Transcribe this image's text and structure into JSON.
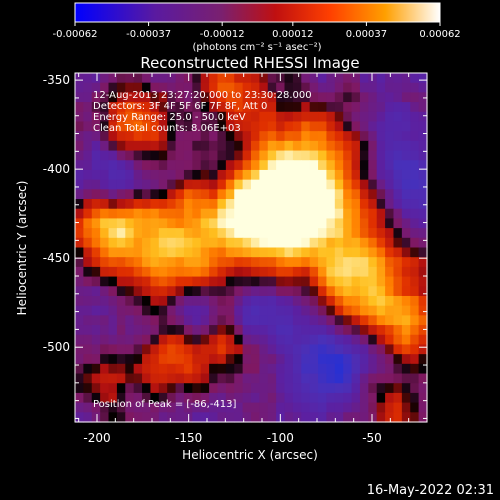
{
  "chart_data": {
    "type": "heatmap",
    "title": "Reconstructed RHESSI Image",
    "xlabel": "Heliocentric X (arcsec)",
    "ylabel": "Heliocentric Y (arcsec)",
    "xlim": [
      -212,
      -20
    ],
    "ylim": [
      -542,
      -346
    ],
    "x_ticks": [
      -200,
      -150,
      -100,
      -50
    ],
    "y_ticks": [
      -350,
      -400,
      -450,
      -500
    ],
    "x_tick_labels": [
      "-200",
      "-150",
      "-100",
      "-50"
    ],
    "y_tick_labels": [
      "-350",
      "-400",
      "-450",
      "-500"
    ],
    "colorbar": {
      "min": -0.00062,
      "max": 0.00062,
      "ticks": [
        -0.00062,
        -0.00037,
        -0.00012,
        0.00012,
        0.00037,
        0.00062
      ],
      "tick_labels": [
        "-0.00062",
        "-0.00037",
        "-0.00012",
        "0.00012",
        "0.00037",
        "0.00062"
      ],
      "unit_label": "(photons cm⁻² s⁻¹ asec⁻²)",
      "colors": [
        "#0000ff",
        "#5a1aa0",
        "#7a2070",
        "#c01010",
        "#ff4000",
        "#ff9f00",
        "#ffffff"
      ]
    },
    "annotations": {
      "time_range": "12-Aug-2013 23:27:20.000 to 23:30:28.000",
      "detectors": "Detectors: 3F 4F 5F 6F 7F 8F, Att 0",
      "energy": "Energy Range: 25.0 - 50.0 keV",
      "clean": "Clean    Total counts: 8.06E+03",
      "peak": "Position of Peak = [-86,-413]"
    },
    "grid": false,
    "data_grid_shape": [
      36,
      42
    ],
    "bright_ridge": {
      "description_points": [
        [
          -150,
          -460
        ],
        [
          -110,
          -420
        ],
        [
          -86,
          -413
        ],
        [
          -60,
          -460
        ],
        [
          -30,
          -490
        ]
      ]
    }
  },
  "footer": {
    "timestamp": "16-May-2022 02:31"
  }
}
